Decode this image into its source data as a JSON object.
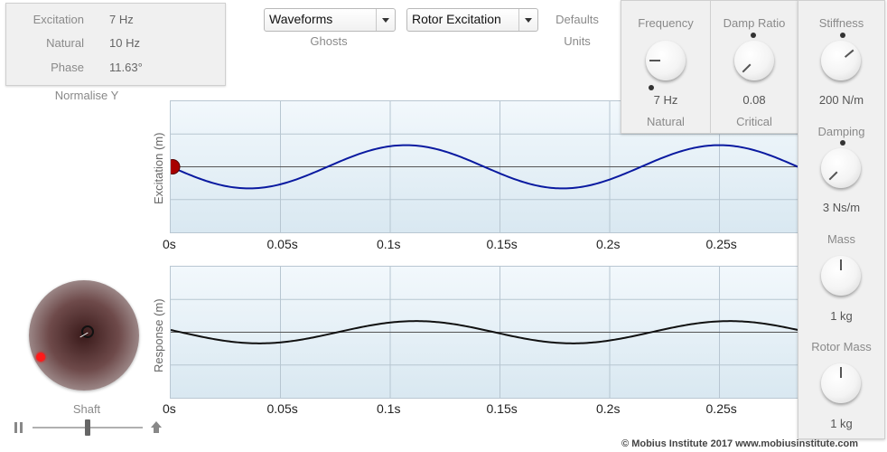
{
  "info": {
    "rows": [
      {
        "label": "Excitation",
        "value": "7 Hz"
      },
      {
        "label": "Natural",
        "value": "10 Hz"
      },
      {
        "label": "Phase",
        "value": "11.63°"
      }
    ],
    "normalise_label": "Normalise Y"
  },
  "controls": {
    "mode_select": "Waveforms",
    "mode_caption": "Ghosts",
    "source_select": "Rotor Excitation",
    "defaults_label": "Defaults",
    "units_label": "Units"
  },
  "knobs": {
    "frequency": {
      "title": "Frequency",
      "value": "7 Hz",
      "caption": "Natural"
    },
    "damp_ratio": {
      "title": "Damp Ratio",
      "value": "0.08",
      "caption": "Critical"
    },
    "stiffness": {
      "title": "Stiffness",
      "value": "200 N/m"
    },
    "damping": {
      "title": "Damping",
      "value": "3 Ns/m"
    },
    "mass": {
      "title": "Mass",
      "value": "1 kg"
    },
    "rotor_mass": {
      "title": "Rotor Mass",
      "value": "1 kg"
    }
  },
  "shaft": {
    "label": "Shaft"
  },
  "footer": "© Mobius Institute 2017  www.mobiusinstitute.com",
  "chart_data": [
    {
      "type": "line",
      "title": "",
      "ylabel": "Excitation (m)",
      "xlabel": "",
      "x_ticks": [
        "0s",
        "0.05s",
        "0.1s",
        "0.15s",
        "0.2s",
        "0.25s"
      ],
      "xlim": [
        0,
        0.286
      ],
      "grid": true,
      "series": [
        {
          "color": "#0a1aa0",
          "amplitude": 0.33,
          "frequency_hz": 7,
          "phase_deg": 0
        }
      ]
    },
    {
      "type": "line",
      "title": "",
      "ylabel": "Response (m)",
      "xlabel": "",
      "x_ticks": [
        "0s",
        "0.05s",
        "0.1s",
        "0.15s",
        "0.2s",
        "0.25s"
      ],
      "xlim": [
        0,
        0.286
      ],
      "grid": true,
      "series": [
        {
          "color": "#111111",
          "amplitude": 0.17,
          "frequency_hz": 7,
          "phase_deg": 11.63
        }
      ]
    }
  ]
}
